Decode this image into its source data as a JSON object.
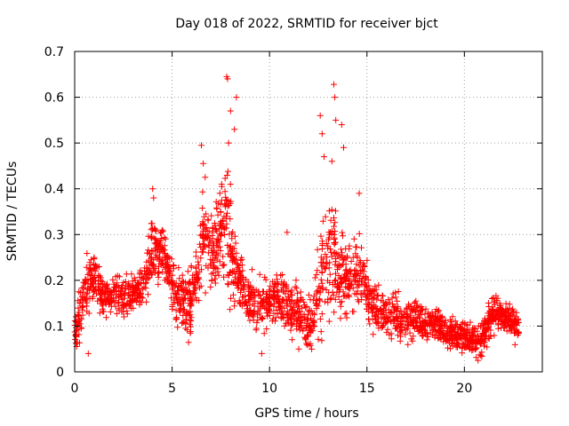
{
  "chart_data": {
    "type": "scatter",
    "title": "Day 018 of 2022, SRMTID for receiver bjct",
    "xlabel": "GPS time / hours",
    "ylabel": "SRMTID / TECUs",
    "xlim": [
      0,
      24
    ],
    "ylim": [
      0,
      0.7
    ],
    "xticks": [
      0,
      5,
      10,
      15,
      20
    ],
    "xtick_labels": [
      "0",
      "5",
      "10",
      "15",
      "20"
    ],
    "yticks": [
      0,
      0.1,
      0.2,
      0.3,
      0.4,
      0.5,
      0.6,
      0.7
    ],
    "ytick_labels": [
      "0",
      "0.1",
      "0.2",
      "0.3",
      "0.4",
      "0.5",
      "0.6",
      "0.7"
    ],
    "grid": true,
    "marker": "plus",
    "color": "#ff0000",
    "x_data_max": 22.8,
    "envelope": {
      "x": [
        0.0,
        0.3,
        0.6,
        1.0,
        1.5,
        2.0,
        2.5,
        3.0,
        3.5,
        3.8,
        4.0,
        4.3,
        4.6,
        4.9,
        5.2,
        5.6,
        6.0,
        6.3,
        6.6,
        7.0,
        7.3,
        7.6,
        7.8,
        8.0,
        8.3,
        8.7,
        9.2,
        9.7,
        10.2,
        10.7,
        11.2,
        11.7,
        12.0,
        12.3,
        12.6,
        12.9,
        13.2,
        13.5,
        13.8,
        14.1,
        14.4,
        14.8,
        15.2,
        15.6,
        16.0,
        16.5,
        17.0,
        17.5,
        18.0,
        18.5,
        19.0,
        19.5,
        20.0,
        20.5,
        20.8,
        21.2,
        21.6,
        22.0,
        22.4,
        22.8
      ],
      "center": [
        0.09,
        0.13,
        0.18,
        0.21,
        0.16,
        0.17,
        0.16,
        0.17,
        0.18,
        0.22,
        0.27,
        0.26,
        0.25,
        0.2,
        0.17,
        0.15,
        0.16,
        0.22,
        0.28,
        0.27,
        0.29,
        0.34,
        0.32,
        0.27,
        0.22,
        0.18,
        0.15,
        0.14,
        0.16,
        0.15,
        0.13,
        0.12,
        0.1,
        0.13,
        0.2,
        0.24,
        0.26,
        0.22,
        0.21,
        0.2,
        0.22,
        0.2,
        0.15,
        0.13,
        0.12,
        0.12,
        0.11,
        0.12,
        0.1,
        0.11,
        0.09,
        0.08,
        0.08,
        0.07,
        0.07,
        0.1,
        0.14,
        0.12,
        0.11,
        0.1
      ],
      "spread": [
        0.04,
        0.05,
        0.06,
        0.05,
        0.04,
        0.04,
        0.04,
        0.04,
        0.04,
        0.06,
        0.07,
        0.05,
        0.05,
        0.05,
        0.05,
        0.05,
        0.06,
        0.07,
        0.08,
        0.08,
        0.09,
        0.11,
        0.12,
        0.1,
        0.07,
        0.06,
        0.05,
        0.05,
        0.05,
        0.05,
        0.05,
        0.05,
        0.05,
        0.08,
        0.11,
        0.12,
        0.12,
        0.1,
        0.08,
        0.07,
        0.07,
        0.06,
        0.05,
        0.04,
        0.04,
        0.04,
        0.04,
        0.04,
        0.03,
        0.03,
        0.03,
        0.03,
        0.03,
        0.03,
        0.03,
        0.04,
        0.04,
        0.03,
        0.03,
        0.03
      ]
    },
    "outliers": [
      {
        "x": 7.8,
        "y": 0.645
      },
      {
        "x": 7.85,
        "y": 0.64
      },
      {
        "x": 8.3,
        "y": 0.6
      },
      {
        "x": 8.0,
        "y": 0.57
      },
      {
        "x": 8.2,
        "y": 0.53
      },
      {
        "x": 7.9,
        "y": 0.5
      },
      {
        "x": 6.5,
        "y": 0.495
      },
      {
        "x": 6.6,
        "y": 0.455
      },
      {
        "x": 6.7,
        "y": 0.425
      },
      {
        "x": 13.3,
        "y": 0.628
      },
      {
        "x": 13.35,
        "y": 0.6
      },
      {
        "x": 13.4,
        "y": 0.55
      },
      {
        "x": 12.6,
        "y": 0.56
      },
      {
        "x": 12.7,
        "y": 0.52
      },
      {
        "x": 13.7,
        "y": 0.54
      },
      {
        "x": 13.8,
        "y": 0.49
      },
      {
        "x": 12.8,
        "y": 0.47
      },
      {
        "x": 13.2,
        "y": 0.46
      },
      {
        "x": 4.0,
        "y": 0.4
      },
      {
        "x": 4.05,
        "y": 0.38
      },
      {
        "x": 14.6,
        "y": 0.39
      },
      {
        "x": 10.9,
        "y": 0.305
      },
      {
        "x": 9.6,
        "y": 0.04
      },
      {
        "x": 0.7,
        "y": 0.04
      },
      {
        "x": 20.7,
        "y": 0.025
      },
      {
        "x": 11.5,
        "y": 0.05
      }
    ]
  }
}
